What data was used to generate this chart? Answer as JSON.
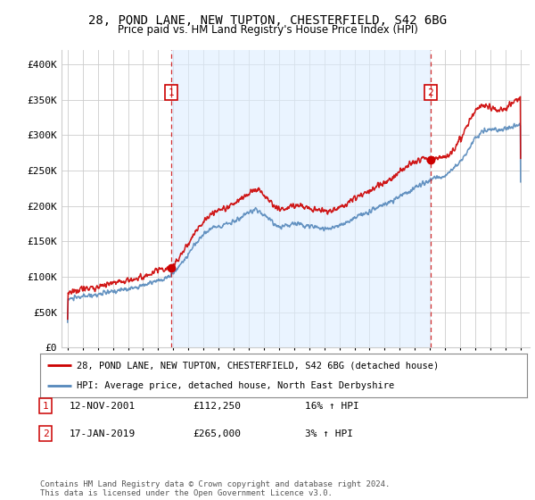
{
  "title": "28, POND LANE, NEW TUPTON, CHESTERFIELD, S42 6BG",
  "subtitle": "Price paid vs. HM Land Registry's House Price Index (HPI)",
  "ylim": [
    0,
    420000
  ],
  "yticks": [
    0,
    50000,
    100000,
    150000,
    200000,
    250000,
    300000,
    350000,
    400000
  ],
  "ytick_labels": [
    "£0",
    "£50K",
    "£100K",
    "£150K",
    "£200K",
    "£250K",
    "£300K",
    "£350K",
    "£400K"
  ],
  "xlim_start": 1994.6,
  "xlim_end": 2025.6,
  "sale1_x": 2001.87,
  "sale1_y": 112250,
  "sale2_x": 2019.04,
  "sale2_y": 265000,
  "legend_line1": "28, POND LANE, NEW TUPTON, CHESTERFIELD, S42 6BG (detached house)",
  "legend_line2": "HPI: Average price, detached house, North East Derbyshire",
  "footer": "Contains HM Land Registry data © Crown copyright and database right 2024.\nThis data is licensed under the Open Government Licence v3.0.",
  "red_color": "#cc0000",
  "blue_color": "#5588bb",
  "shade_color": "#ddeeff",
  "grid_color": "#cccccc",
  "bg_color": "#ffffff",
  "hpi_base": [
    [
      1995.0,
      68000
    ],
    [
      1995.5,
      70000
    ],
    [
      1996.0,
      72000
    ],
    [
      1996.5,
      73500
    ],
    [
      1997.0,
      75000
    ],
    [
      1997.5,
      77000
    ],
    [
      1998.0,
      79000
    ],
    [
      1998.5,
      81000
    ],
    [
      1999.0,
      83000
    ],
    [
      1999.5,
      85000
    ],
    [
      2000.0,
      88000
    ],
    [
      2000.5,
      91000
    ],
    [
      2001.0,
      94000
    ],
    [
      2001.5,
      97000
    ],
    [
      2002.0,
      105000
    ],
    [
      2002.5,
      118000
    ],
    [
      2003.0,
      132000
    ],
    [
      2003.5,
      148000
    ],
    [
      2004.0,
      160000
    ],
    [
      2004.5,
      168000
    ],
    [
      2005.0,
      172000
    ],
    [
      2005.5,
      174000
    ],
    [
      2006.0,
      178000
    ],
    [
      2006.5,
      183000
    ],
    [
      2007.0,
      190000
    ],
    [
      2007.5,
      195000
    ],
    [
      2008.0,
      188000
    ],
    [
      2008.5,
      178000
    ],
    [
      2009.0,
      170000
    ],
    [
      2009.5,
      172000
    ],
    [
      2010.0,
      176000
    ],
    [
      2010.5,
      174000
    ],
    [
      2011.0,
      172000
    ],
    [
      2011.5,
      170000
    ],
    [
      2012.0,
      168000
    ],
    [
      2012.5,
      169000
    ],
    [
      2013.0,
      172000
    ],
    [
      2013.5,
      177000
    ],
    [
      2014.0,
      183000
    ],
    [
      2014.5,
      188000
    ],
    [
      2015.0,
      193000
    ],
    [
      2015.5,
      197000
    ],
    [
      2016.0,
      202000
    ],
    [
      2016.5,
      207000
    ],
    [
      2017.0,
      213000
    ],
    [
      2017.5,
      219000
    ],
    [
      2018.0,
      225000
    ],
    [
      2018.5,
      231000
    ],
    [
      2019.0,
      236000
    ],
    [
      2019.5,
      240000
    ],
    [
      2020.0,
      243000
    ],
    [
      2020.5,
      252000
    ],
    [
      2021.0,
      263000
    ],
    [
      2021.5,
      278000
    ],
    [
      2022.0,
      296000
    ],
    [
      2022.5,
      305000
    ],
    [
      2023.0,
      308000
    ],
    [
      2023.5,
      306000
    ],
    [
      2024.0,
      308000
    ],
    [
      2024.5,
      312000
    ],
    [
      2025.0,
      315000
    ]
  ],
  "price_base": [
    [
      1995.0,
      78000
    ],
    [
      1995.5,
      80000
    ],
    [
      1996.0,
      82500
    ],
    [
      1996.5,
      84000
    ],
    [
      1997.0,
      86000
    ],
    [
      1997.5,
      88000
    ],
    [
      1998.0,
      90500
    ],
    [
      1998.5,
      92500
    ],
    [
      1999.0,
      95000
    ],
    [
      1999.5,
      97000
    ],
    [
      2000.0,
      100000
    ],
    [
      2000.5,
      104000
    ],
    [
      2001.0,
      108000
    ],
    [
      2001.87,
      112250
    ],
    [
      2002.0,
      116000
    ],
    [
      2002.5,
      130000
    ],
    [
      2003.0,
      148000
    ],
    [
      2003.5,
      165000
    ],
    [
      2004.0,
      178000
    ],
    [
      2004.5,
      188000
    ],
    [
      2005.0,
      194000
    ],
    [
      2005.5,
      198000
    ],
    [
      2006.0,
      202000
    ],
    [
      2006.5,
      210000
    ],
    [
      2007.0,
      218000
    ],
    [
      2007.5,
      224000
    ],
    [
      2008.0,
      216000
    ],
    [
      2008.5,
      204000
    ],
    [
      2009.0,
      195000
    ],
    [
      2009.5,
      197000
    ],
    [
      2010.0,
      202000
    ],
    [
      2010.5,
      200000
    ],
    [
      2011.0,
      197000
    ],
    [
      2011.5,
      194000
    ],
    [
      2012.0,
      192000
    ],
    [
      2012.5,
      193000
    ],
    [
      2013.0,
      197000
    ],
    [
      2013.5,
      203000
    ],
    [
      2014.0,
      210000
    ],
    [
      2014.5,
      216000
    ],
    [
      2015.0,
      222000
    ],
    [
      2015.5,
      227000
    ],
    [
      2016.0,
      234000
    ],
    [
      2016.5,
      240000
    ],
    [
      2017.0,
      248000
    ],
    [
      2017.5,
      255000
    ],
    [
      2018.0,
      262000
    ],
    [
      2018.5,
      267000
    ],
    [
      2019.04,
      265000
    ],
    [
      2019.5,
      268000
    ],
    [
      2020.0,
      268000
    ],
    [
      2020.5,
      278000
    ],
    [
      2021.0,
      295000
    ],
    [
      2021.5,
      315000
    ],
    [
      2022.0,
      335000
    ],
    [
      2022.5,
      342000
    ],
    [
      2023.0,
      340000
    ],
    [
      2023.5,
      335000
    ],
    [
      2024.0,
      338000
    ],
    [
      2024.5,
      345000
    ],
    [
      2025.0,
      352000
    ]
  ]
}
